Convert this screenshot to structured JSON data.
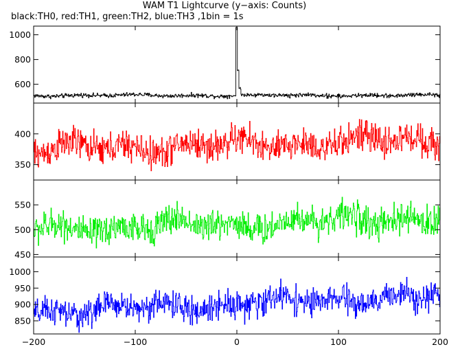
{
  "chart_data": {
    "type": "line",
    "title": "WAM T1 Lightcurve (y−axis: Counts)",
    "subtitle": "black:TH0, red:TH1, green:TH2, blue:TH3 ,1bin = 1s",
    "xlim": [
      -200,
      200
    ],
    "x_ticks": [
      -200,
      -100,
      0,
      100,
      200
    ],
    "x_tick_labels": [
      "−200",
      "−100",
      "0",
      "100",
      "200"
    ],
    "bin_seconds": 1,
    "panels": [
      {
        "name": "TH0",
        "color": "#000000",
        "ylim": [
          448,
          1070
        ],
        "y_ticks": [
          600,
          800,
          1000
        ],
        "y_tick_labels": [
          "600",
          "800",
          "1000"
        ],
        "baseline": 510,
        "noise": 12,
        "trend": 0,
        "peak": {
          "x": 0,
          "value": 1060,
          "decay_to": 720
        }
      },
      {
        "name": "TH1",
        "color": "#ff0000",
        "ylim": [
          325,
          450
        ],
        "y_ticks": [
          350,
          400
        ],
        "y_tick_labels": [
          "350",
          "400"
        ],
        "baseline": 382,
        "noise": 18,
        "trend": 8
      },
      {
        "name": "TH2",
        "color": "#00ee00",
        "ylim": [
          445,
          600
        ],
        "y_ticks": [
          450,
          500,
          550
        ],
        "y_tick_labels": [
          "450",
          "500",
          "550"
        ],
        "baseline": 512,
        "noise": 22,
        "trend": 12
      },
      {
        "name": "TH3",
        "color": "#0000ff",
        "ylim": [
          810,
          1045
        ],
        "y_ticks": [
          850,
          900,
          950,
          1000
        ],
        "y_tick_labels": [
          "850",
          "900",
          "950",
          "1000"
        ],
        "baseline": 902,
        "noise": 30,
        "trend": 25
      }
    ]
  }
}
